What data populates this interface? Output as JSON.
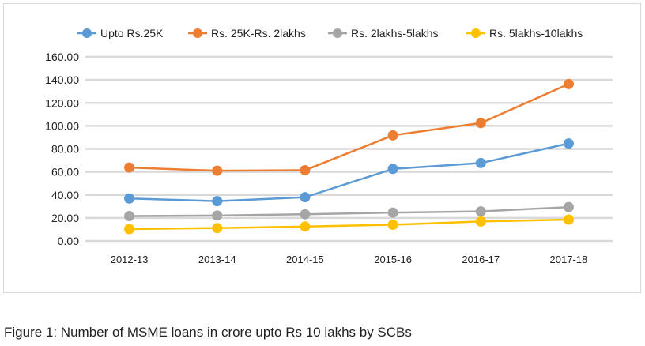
{
  "chart_data": {
    "type": "line",
    "title": "",
    "xlabel": "",
    "ylabel": "",
    "categories": [
      "2012-13",
      "2013-14",
      "2014-15",
      "2015-16",
      "2016-17",
      "2017-18"
    ],
    "ylim": [
      0,
      160
    ],
    "yticks": [
      "0.00",
      "20.00",
      "40.00",
      "60.00",
      "80.00",
      "100.00",
      "120.00",
      "140.00",
      "160.00"
    ],
    "grid": true,
    "legend_position": "top",
    "series": [
      {
        "name": "Upto Rs.25K",
        "color": "#5b9bd5",
        "values": [
          36.9,
          34.6,
          38.0,
          62.6,
          67.7,
          84.7
        ]
      },
      {
        "name": "Rs. 25K-Rs. 2lakhs",
        "color": "#ed7d31",
        "values": [
          63.8,
          61.0,
          61.5,
          91.8,
          102.5,
          136.4
        ]
      },
      {
        "name": "Rs. 2lakhs-5lakhs",
        "color": "#a5a5a5",
        "values": [
          21.6,
          22.1,
          23.2,
          24.6,
          25.7,
          29.4
        ]
      },
      {
        "name": "Rs. 5lakhs-10lakhs",
        "color": "#ffc000",
        "values": [
          10.3,
          11.2,
          12.5,
          14.1,
          16.9,
          18.5
        ]
      }
    ]
  },
  "caption": "Figure 1: Number of MSME loans in crore upto Rs 10 lakhs by SCBs"
}
